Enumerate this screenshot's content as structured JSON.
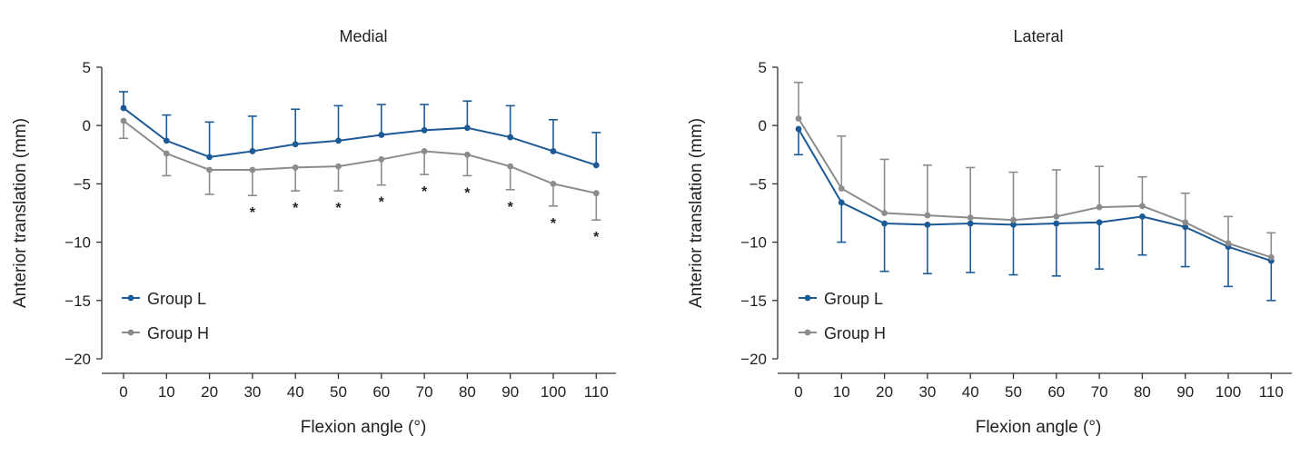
{
  "chart_data": [
    {
      "type": "line",
      "title": "Medial",
      "xlabel": "Flexion angle (°)",
      "ylabel": "Anterior translation (mm)",
      "x": [
        0,
        10,
        20,
        30,
        40,
        50,
        60,
        70,
        80,
        90,
        100,
        110
      ],
      "x_tick_labels": [
        "0",
        "10",
        "20",
        "30",
        "40",
        "50",
        "60",
        "70",
        "80",
        "90",
        "100",
        "110"
      ],
      "ylim": [
        -20,
        5
      ],
      "y_ticks": [
        5,
        0,
        -5,
        -10,
        -15,
        -20
      ],
      "y_tick_labels": [
        "5",
        "0",
        "−5",
        "−10",
        "−15",
        "−20"
      ],
      "legend_position": "bottom-left",
      "series": [
        {
          "name": "Group L",
          "color": "#1c5a96",
          "values": [
            1.5,
            -1.3,
            -2.7,
            -2.2,
            -1.6,
            -1.3,
            -0.8,
            -0.4,
            -0.2,
            -1.0,
            -2.2,
            -3.4
          ],
          "error": [
            1.4,
            2.2,
            3.0,
            3.0,
            3.0,
            3.0,
            2.6,
            2.2,
            2.3,
            2.7,
            2.7,
            2.8
          ],
          "error_direction": "up"
        },
        {
          "name": "Group H",
          "color": "#8c8c8c",
          "values": [
            0.4,
            -2.4,
            -3.8,
            -3.8,
            -3.6,
            -3.5,
            -2.9,
            -2.2,
            -2.5,
            -3.5,
            -5.0,
            -5.8
          ],
          "error": [
            1.5,
            1.9,
            2.1,
            2.2,
            2.0,
            2.1,
            2.2,
            2.0,
            1.8,
            2.0,
            1.9,
            2.3
          ],
          "error_direction": "down"
        }
      ],
      "significance_marks": [
        {
          "x": 30,
          "label": "*"
        },
        {
          "x": 40,
          "label": "*"
        },
        {
          "x": 50,
          "label": "*"
        },
        {
          "x": 60,
          "label": "*"
        },
        {
          "x": 70,
          "label": "*"
        },
        {
          "x": 80,
          "label": "*"
        },
        {
          "x": 90,
          "label": "*"
        },
        {
          "x": 100,
          "label": "*"
        },
        {
          "x": 110,
          "label": "*"
        }
      ]
    },
    {
      "type": "line",
      "title": "Lateral",
      "xlabel": "Flexion angle (°)",
      "ylabel": "Anterior translation (mm)",
      "x": [
        0,
        10,
        20,
        30,
        40,
        50,
        60,
        70,
        80,
        90,
        100,
        110
      ],
      "x_tick_labels": [
        "0",
        "10",
        "20",
        "30",
        "40",
        "50",
        "60",
        "70",
        "80",
        "90",
        "100",
        "110"
      ],
      "ylim": [
        -20,
        5
      ],
      "y_ticks": [
        5,
        0,
        -5,
        -10,
        -15,
        -20
      ],
      "y_tick_labels": [
        "5",
        "0",
        "−5",
        "−10",
        "−15",
        "−20"
      ],
      "legend_position": "bottom-left",
      "series": [
        {
          "name": "Group L",
          "color": "#1c5a96",
          "values": [
            -0.3,
            -6.6,
            -8.4,
            -8.5,
            -8.4,
            -8.5,
            -8.4,
            -8.3,
            -7.8,
            -8.7,
            -10.4,
            -11.6
          ],
          "error": [
            2.2,
            3.4,
            4.1,
            4.2,
            4.2,
            4.3,
            4.5,
            4.0,
            3.3,
            3.4,
            3.4,
            3.4
          ],
          "error_direction": "down"
        },
        {
          "name": "Group H",
          "color": "#8c8c8c",
          "values": [
            0.6,
            -5.4,
            -7.5,
            -7.7,
            -7.9,
            -8.1,
            -7.8,
            -7.0,
            -6.9,
            -8.3,
            -10.1,
            -11.3
          ],
          "error": [
            3.1,
            4.5,
            4.6,
            4.3,
            4.3,
            4.1,
            4.0,
            3.5,
            2.5,
            2.5,
            2.3,
            2.1
          ],
          "error_direction": "up"
        }
      ],
      "significance_marks": []
    }
  ]
}
